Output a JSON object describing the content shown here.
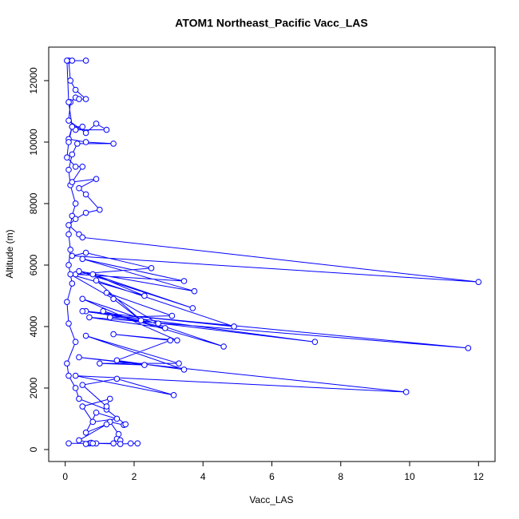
{
  "chart_data": {
    "type": "line",
    "title": "ATOM1 Northeast_Pacific Vacc_LAS",
    "x_label": "Vacc_LAS",
    "y_label": "Altitude (m)",
    "xlim": [
      -0.48,
      12.48
    ],
    "ylim": [
      -390,
      13090
    ],
    "xticks": [
      0,
      2,
      4,
      6,
      8,
      10,
      12
    ],
    "yticks": [
      0,
      2000,
      4000,
      6000,
      8000,
      10000,
      12000
    ],
    "markers": true,
    "x": [
      0.1,
      0.7,
      0.75,
      0.6,
      0.9,
      1.4,
      1.5,
      1.6,
      1.55,
      1.3,
      1.7,
      1.75,
      1.2,
      0.4,
      0.3,
      0.1,
      0.05,
      0.3,
      0.1,
      0.05,
      0.2,
      0.1,
      0.15,
      0.1,
      0.2,
      0.3,
      0.15,
      0.1,
      0.2,
      0.35,
      1.4,
      0.6,
      0.1,
      0.2,
      0.5,
      0.3,
      1.2,
      0.9,
      0.6,
      0.1,
      0.15,
      0.3,
      0.4,
      0.6,
      0.3,
      0.15,
      0.1,
      0.6,
      0.2,
      0.05,
      0.1,
      0.2,
      0.1,
      0.05,
      0.3,
      0.5,
      0.2,
      0.9,
      0.4,
      0.6,
      1.0,
      0.6,
      0.3,
      0.1,
      0.4,
      0.5,
      12.0,
      0.2,
      0.6,
      2.5,
      0.3,
      3.45,
      0.5,
      3.75,
      0.4,
      3.7,
      0.8,
      2.3,
      0.15,
      1.4,
      2.2,
      0.9,
      4.9,
      0.6,
      2.7,
      1.2,
      3.1,
      1.3,
      7.25,
      0.5,
      11.7,
      0.7,
      2.9,
      1.1,
      4.6,
      0.5,
      3.25,
      1.4,
      3.05,
      1.5,
      3.45,
      0.6,
      3.3,
      1.0,
      2.3,
      0.4,
      9.9,
      0.3,
      3.15,
      1.5,
      0.5,
      1.2,
      1.3,
      0.5,
      0.8,
      1.5,
      0.9,
      0.6,
      1.2,
      0.4,
      0.8,
      1.6,
      2.1,
      1.9
    ],
    "series": [
      {
        "name": "Altitude",
        "color": "#0000ff",
        "values": [
          200,
          200,
          220,
          180,
          200,
          200,
          350,
          300,
          500,
          900,
          800,
          820,
          1300,
          1650,
          2000,
          2400,
          2800,
          3500,
          4100,
          4800,
          5400,
          6000,
          6500,
          7000,
          7600,
          8000,
          8600,
          9100,
          9600,
          9950,
          9950,
          10000,
          10100,
          10500,
          10500,
          10400,
          10400,
          10600,
          10300,
          10700,
          11300,
          11450,
          11400,
          11400,
          11700,
          12000,
          12650,
          12650,
          12650,
          12650,
          11300,
          10500,
          10000,
          9500,
          9200,
          9200,
          8700,
          8800,
          8500,
          8300,
          7800,
          7700,
          7500,
          7300,
          7000,
          6900,
          5450,
          6300,
          6400,
          5900,
          5700,
          5480,
          6200,
          5150,
          5800,
          4600,
          5700,
          5000,
          5700,
          4900,
          4200,
          5500,
          4000,
          4500,
          4100,
          5100,
          4350,
          4300,
          3500,
          4500,
          3300,
          4300,
          3950,
          4500,
          3350,
          4900,
          3550,
          3750,
          3550,
          2900,
          2600,
          3700,
          2800,
          2800,
          2750,
          3000,
          1870,
          2400,
          1770,
          2300,
          2100,
          1400,
          1650,
          1400,
          900,
          1000,
          1200,
          550,
          820,
          300,
          200,
          180,
          200,
          200
        ]
      }
    ]
  }
}
